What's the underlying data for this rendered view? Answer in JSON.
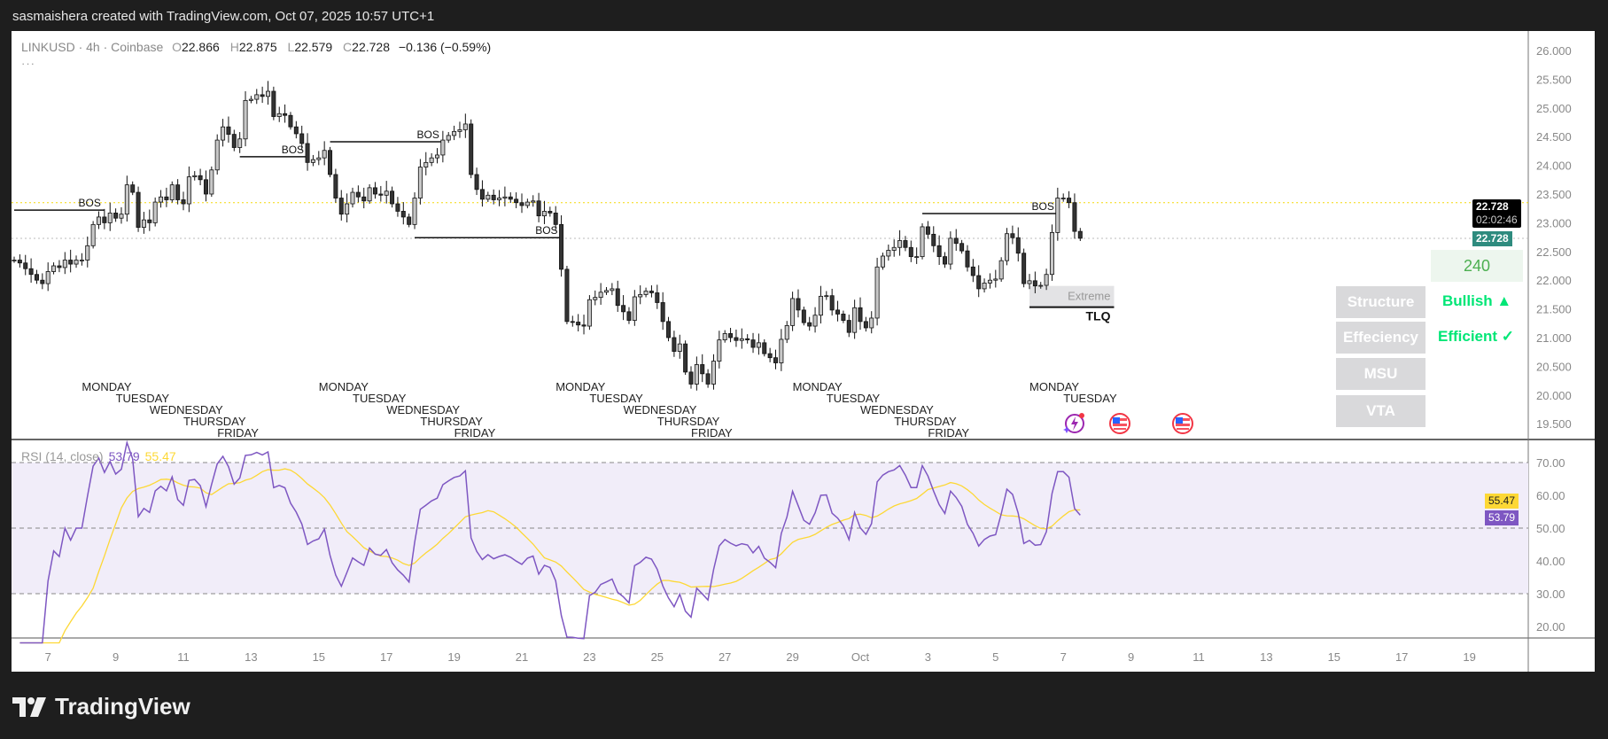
{
  "header": {
    "text": "sasmaishera created with TradingView.com, Oct 07, 2025 10:57 UTC+1"
  },
  "legend": {
    "symbol": "LINKUSD · 4h · Coinbase",
    "o_label": "O",
    "o": "22.866",
    "h_label": "H",
    "h": "22.875",
    "l_label": "L",
    "l": "22.579",
    "c_label": "C",
    "c": "22.728",
    "change": "−0.136 (−0.59%)",
    "more": "···"
  },
  "price_tags": {
    "last": "22.728",
    "countdown": "02:02:46",
    "close": "22.728"
  },
  "rsi_legend": {
    "label": "RSI (14, close)",
    "rsi": "53.79",
    "ma": "55.47"
  },
  "rsi_tags": {
    "rsi": "53.79",
    "ma": "55.47"
  },
  "panel": {
    "timeframe": "240",
    "rows": [
      {
        "label": "Structure",
        "value": "Bullish ▲"
      },
      {
        "label": "Effeciency",
        "value": "Efficient ✓"
      },
      {
        "label": "MSU",
        "value": ""
      },
      {
        "label": "VTA",
        "value": ""
      }
    ]
  },
  "footer": {
    "brand": "TradingView"
  },
  "colors": {
    "bull": "#c8c8c8",
    "bear": "#333333",
    "rsi": "#7e57c2",
    "rsi_ma": "#fdd835",
    "band": "#f1edf9",
    "teal": "#2e8b7e",
    "signal_red": "#f44336",
    "signal_green": "#00e676"
  },
  "icons": [
    "lightning-event-icon",
    "us-flag-icon",
    "us-flag-icon"
  ],
  "chart_data": {
    "type": "candlestick",
    "symbol": "LINKUSD",
    "interval": "4h",
    "start": "2025-09-06T00:00",
    "closes": [
      22.35,
      22.3,
      22.2,
      22.1,
      22.0,
      21.94,
      22.15,
      22.25,
      22.22,
      22.35,
      22.28,
      22.35,
      22.35,
      22.6,
      22.97,
      23.1,
      23.0,
      23.17,
      23.08,
      23.15,
      23.66,
      23.53,
      22.92,
      23.05,
      23.0,
      23.36,
      23.45,
      23.4,
      23.66,
      23.4,
      23.33,
      23.8,
      23.82,
      23.75,
      23.5,
      23.92,
      24.44,
      24.67,
      24.54,
      24.31,
      24.46,
      25.13,
      25.15,
      25.23,
      25.2,
      25.29,
      24.85,
      24.9,
      24.87,
      24.67,
      24.55,
      24.38,
      24.05,
      24.1,
      24.13,
      24.26,
      23.84,
      23.43,
      23.15,
      23.33,
      23.53,
      23.45,
      23.38,
      23.61,
      23.5,
      23.48,
      23.55,
      23.33,
      23.2,
      23.1,
      22.97,
      23.43,
      23.97,
      24.05,
      24.13,
      24.18,
      24.44,
      24.52,
      24.59,
      24.62,
      24.72,
      23.84,
      23.58,
      23.41,
      23.48,
      23.4,
      23.43,
      23.45,
      23.41,
      23.35,
      23.3,
      23.36,
      23.38,
      23.12,
      23.2,
      23.17,
      22.97,
      22.19,
      21.28,
      21.27,
      21.22,
      21.2,
      21.66,
      21.7,
      21.79,
      21.82,
      21.85,
      21.56,
      21.45,
      21.3,
      21.71,
      21.75,
      21.81,
      21.78,
      21.61,
      21.28,
      21.0,
      20.76,
      20.89,
      20.4,
      20.19,
      20.53,
      20.37,
      20.19,
      20.59,
      20.96,
      21.07,
      21.0,
      20.95,
      20.98,
      20.96,
      20.83,
      20.91,
      20.72,
      20.65,
      20.56,
      20.97,
      21.21,
      21.68,
      21.48,
      21.26,
      21.2,
      21.39,
      21.72,
      21.73,
      21.48,
      21.41,
      21.3,
      21.09,
      21.52,
      21.28,
      21.17,
      21.34,
      22.23,
      22.42,
      22.52,
      22.57,
      22.69,
      22.57,
      22.41,
      22.41,
      22.93,
      22.8,
      22.6,
      22.41,
      22.28,
      22.73,
      22.64,
      22.51,
      22.23,
      22.08,
      21.85,
      21.95,
      22.0,
      22.02,
      22.34,
      22.81,
      22.74,
      22.47,
      21.94,
      21.99,
      21.9,
      21.91,
      22.1,
      22.83,
      23.43,
      23.43,
      23.35,
      22.85,
      22.73
    ],
    "price_axis": {
      "min": 19.5,
      "max": 26.0,
      "step": 0.5,
      "ticks": [
        "26.000",
        "25.500",
        "25.000",
        "24.500",
        "24.000",
        "23.500",
        "23.000",
        "22.500",
        "22.000",
        "21.500",
        "21.000",
        "20.500",
        "20.000",
        "19.500"
      ]
    },
    "time_axis": {
      "ticks": [
        "7",
        "9",
        "11",
        "13",
        "15",
        "17",
        "19",
        "21",
        "23",
        "25",
        "27",
        "29",
        "Oct",
        "3",
        "5",
        "7",
        "9",
        "11",
        "13",
        "15",
        "17",
        "19"
      ]
    },
    "bos": [
      {
        "label": "BOS",
        "price": 23.22,
        "from": "2025-09-06T00:00",
        "to": "2025-09-08T16:00"
      },
      {
        "label": "BOS",
        "price": 24.15,
        "from": "2025-09-12T16:00",
        "to": "2025-09-14T16:00"
      },
      {
        "label": "BOS",
        "price": 24.41,
        "from": "2025-09-15T08:00",
        "to": "2025-09-18T16:00"
      },
      {
        "label": "BOS",
        "price": 22.74,
        "from": "2025-09-17T20:00",
        "to": "2025-09-22T04:00"
      },
      {
        "label": "BOS",
        "price": 23.16,
        "from": "2025-10-02T20:00",
        "to": "2025-10-06T20:00"
      }
    ],
    "zone": {
      "label": "Extreme",
      "label2": "TLQ",
      "top": 21.9,
      "bottom": 21.53,
      "from": "2025-10-06T00:00",
      "to": "2025-10-08T12:00"
    },
    "dotted_levels": [
      {
        "price": 23.35,
        "color": "#f5d90a"
      },
      {
        "price": 22.728,
        "color": "#bbbbbb"
      }
    ],
    "weekday_labels": [
      {
        "week_of": "2025-09-08",
        "days": [
          "MONDAY",
          "TUESDAY",
          "WEDNESDAY",
          "THURSDAY",
          "FRIDAY"
        ]
      },
      {
        "week_of": "2025-09-15",
        "days": [
          "MONDAY",
          "TUESDAY",
          "WEDNESDAY",
          "THURSDAY",
          "FRIDAY"
        ]
      },
      {
        "week_of": "2025-09-22",
        "days": [
          "MONDAY",
          "TUESDAY",
          "WEDNESDAY",
          "THURSDAY",
          "FRIDAY"
        ]
      },
      {
        "week_of": "2025-09-29",
        "days": [
          "MONDAY",
          "TUESDAY",
          "WEDNESDAY",
          "THURSDAY",
          "FRIDAY"
        ]
      },
      {
        "week_of": "2025-10-06",
        "days": [
          "MONDAY",
          "TUESDAY"
        ]
      }
    ],
    "rsi": {
      "length": 14,
      "ma_length": 14,
      "levels": [
        70,
        50,
        30
      ],
      "axis_ticks": [
        "70.00",
        "60.00",
        "50.00",
        "40.00",
        "30.00",
        "20.00"
      ]
    }
  }
}
